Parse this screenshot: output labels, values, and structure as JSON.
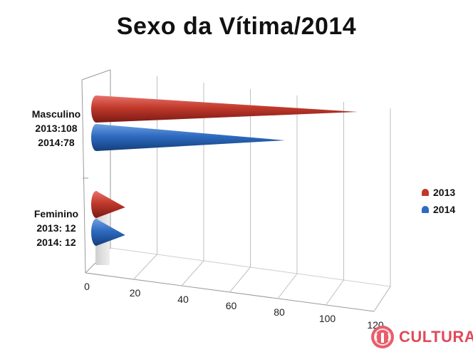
{
  "chart_data": {
    "type": "bar",
    "orientation": "horizontal",
    "style": "3d-cone",
    "title": "Sexo da Vítima/2014",
    "categories": [
      "Masculino",
      "Feminino"
    ],
    "category_labels": [
      [
        "Masculino",
        "2013:108",
        "2014:78"
      ],
      [
        "Feminino",
        "2013: 12",
        "2014: 12"
      ]
    ],
    "series": [
      {
        "name": "2013",
        "values": [
          108,
          12
        ],
        "color": "#c0392b"
      },
      {
        "name": "2014",
        "values": [
          78,
          12
        ],
        "color": "#2e6bc0"
      }
    ],
    "xlim": [
      0,
      120
    ],
    "ticks": [
      "0",
      "20",
      "40",
      "60",
      "80",
      "100",
      "120"
    ],
    "grid": true,
    "legend": "right"
  },
  "watermark": {
    "text": "CULTURA",
    "color": "#e04a5a"
  }
}
